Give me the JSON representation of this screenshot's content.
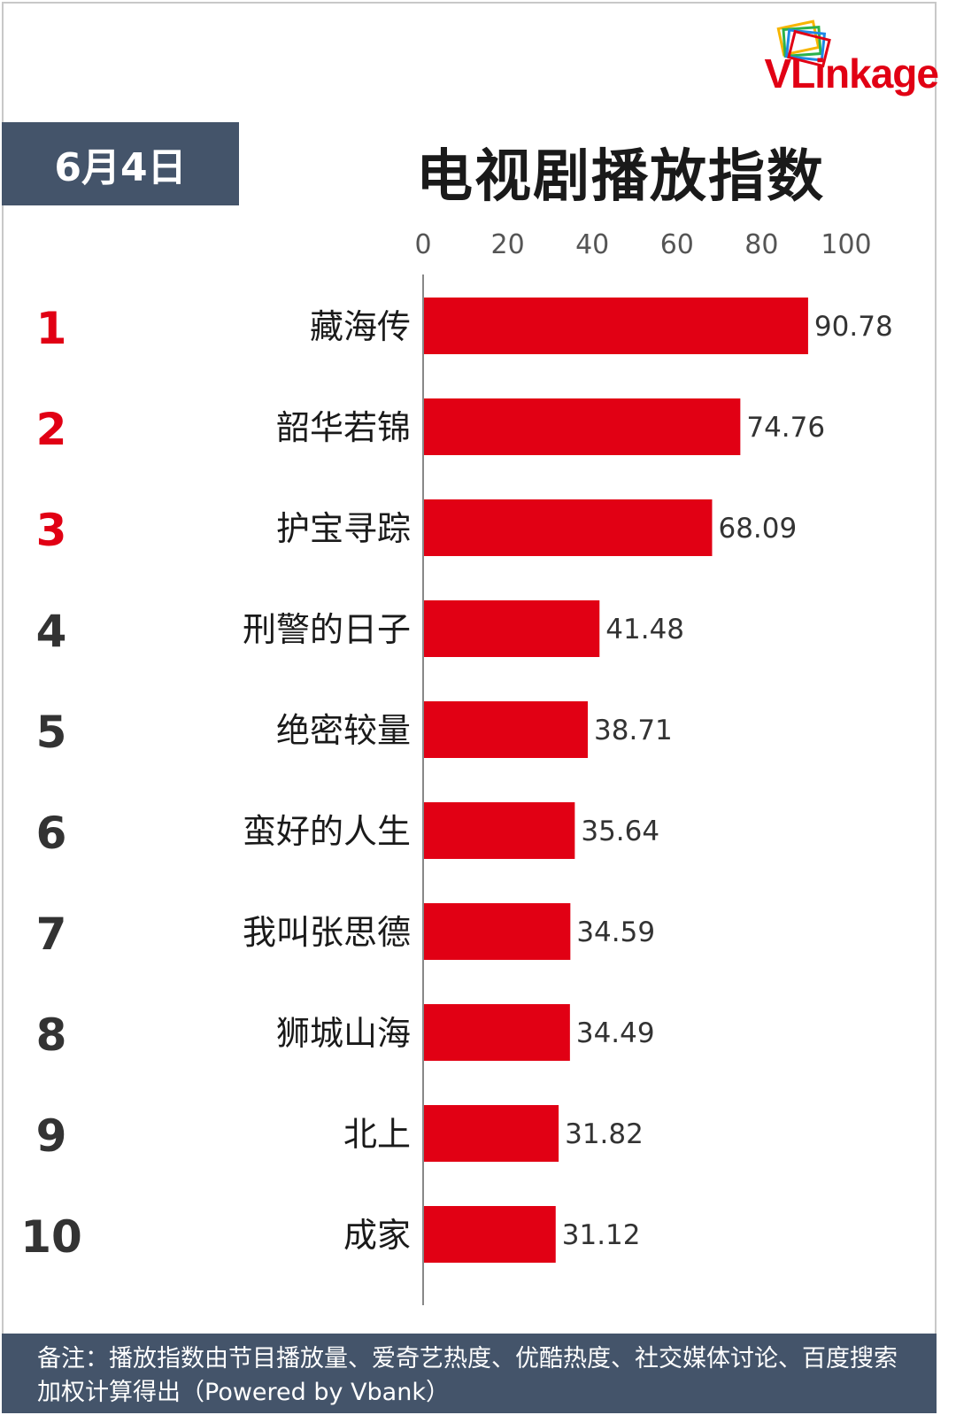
{
  "logo": {
    "text": "VLinkage"
  },
  "date": "6月4日",
  "title": "电视剧播放指数",
  "footer": {
    "note": "备注：播放指数由节目播放量、爱奇艺热度、优酷热度、社交媒体讨论、百度搜索加权计算得出（Powered by Vbank）"
  },
  "colors": {
    "bar": "#e10014",
    "rank_top": "#e10014",
    "rank_other": "#333333",
    "header_bg": "#44546a"
  },
  "chart_data": {
    "type": "bar",
    "orientation": "horizontal",
    "title": "电视剧播放指数",
    "xlim": [
      0,
      100
    ],
    "ticks": [
      "0",
      "20",
      "40",
      "60",
      "80",
      "100"
    ],
    "grid": false,
    "ranks": [
      "1",
      "2",
      "3",
      "4",
      "5",
      "6",
      "7",
      "8",
      "9",
      "10"
    ],
    "categories": [
      "藏海传",
      "韶华若锦",
      "护宝寻踪",
      "刑警的日子",
      "绝密较量",
      "蛮好的人生",
      "我叫张思德",
      "狮城山海",
      "北上",
      "成家"
    ],
    "values": [
      90.78,
      74.76,
      68.09,
      41.48,
      38.71,
      35.64,
      34.59,
      34.49,
      31.82,
      31.12
    ],
    "value_labels": [
      "90.78",
      "74.76",
      "68.09",
      "41.48",
      "38.71",
      "35.64",
      "34.59",
      "34.49",
      "31.82",
      "31.12"
    ]
  }
}
